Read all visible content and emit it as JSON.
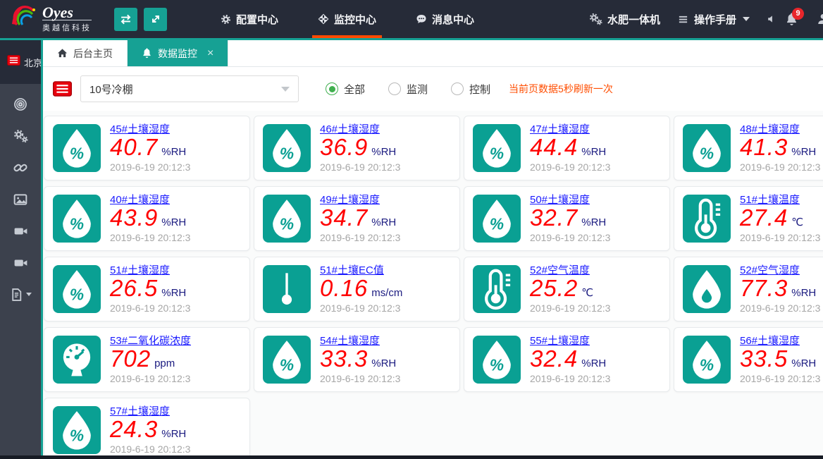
{
  "header": {
    "logo": {
      "brand": "Oyes",
      "subtitle": "奥越信科技"
    },
    "toolbar": [
      {
        "icon": "swap-icon"
      },
      {
        "icon": "expand-icon"
      }
    ],
    "nav": [
      {
        "label": "配置中心",
        "icon": "gear-icon",
        "active": false
      },
      {
        "label": "监控中心",
        "icon": "monitor-icon",
        "active": true
      },
      {
        "label": "消息中心",
        "icon": "message-icon",
        "active": false
      }
    ],
    "right": {
      "fertigation_label": "水肥一体机",
      "manual_label": "操作手册",
      "notification_count": "9"
    }
  },
  "sidebar": {
    "region_label": "北京",
    "items": [
      {
        "icon": "target-icon"
      },
      {
        "icon": "gears-icon"
      },
      {
        "icon": "link-icon"
      },
      {
        "icon": "image-icon"
      },
      {
        "icon": "camera-icon"
      },
      {
        "icon": "camera-icon"
      },
      {
        "icon": "document-icon",
        "caret": true
      }
    ]
  },
  "tabs": [
    {
      "label": "后台主页",
      "icon": "home-icon",
      "active": false,
      "closable": false
    },
    {
      "label": "数据监控",
      "icon": "bell-icon",
      "active": true,
      "closable": true
    }
  ],
  "filter": {
    "greenhouse_selected": "10号冷棚",
    "radios": [
      {
        "label": "全部",
        "checked": true
      },
      {
        "label": "监测",
        "checked": false
      },
      {
        "label": "控制",
        "checked": false
      }
    ],
    "refresh_note": "当前页数据5秒刷新一次"
  },
  "cards": [
    {
      "title": "45#土壤湿度",
      "value": "40.7",
      "unit": "%RH",
      "time": "2019-6-19 20:12:3",
      "icon": "soil-moisture-icon"
    },
    {
      "title": "46#土壤湿度",
      "value": "36.9",
      "unit": "%RH",
      "time": "2019-6-19 20:12:3",
      "icon": "soil-moisture-icon"
    },
    {
      "title": "47#土壤湿度",
      "value": "44.4",
      "unit": "%RH",
      "time": "2019-6-19 20:12:3",
      "icon": "soil-moisture-icon"
    },
    {
      "title": "48#土壤湿度",
      "value": "41.3",
      "unit": "%RH",
      "time": "2019-6-19 20:12:3",
      "icon": "soil-moisture-icon"
    },
    {
      "title": "40#土壤湿度",
      "value": "43.9",
      "unit": "%RH",
      "time": "2019-6-19 20:12:3",
      "icon": "soil-moisture-icon"
    },
    {
      "title": "49#土壤湿度",
      "value": "34.7",
      "unit": "%RH",
      "time": "2019-6-19 20:12:3",
      "icon": "soil-moisture-icon"
    },
    {
      "title": "50#土壤湿度",
      "value": "32.7",
      "unit": "%RH",
      "time": "2019-6-19 20:12:3",
      "icon": "soil-moisture-icon"
    },
    {
      "title": "51#土壤温度",
      "value": "27.4",
      "unit": "℃",
      "time": "2019-6-19 20:12:3",
      "icon": "thermometer-icon"
    },
    {
      "title": "51#土壤湿度",
      "value": "26.5",
      "unit": "%RH",
      "time": "2019-6-19 20:12:3",
      "icon": "soil-moisture-icon"
    },
    {
      "title": "51#土壤EC值",
      "value": "0.16",
      "unit": "ms/cm",
      "time": "2019-6-19 20:12:3",
      "icon": "ec-probe-icon"
    },
    {
      "title": "52#空气温度",
      "value": "25.2",
      "unit": "℃",
      "time": "2019-6-19 20:12:3",
      "icon": "thermometer-icon"
    },
    {
      "title": "52#空气湿度",
      "value": "77.3",
      "unit": "%RH",
      "time": "2019-6-19 20:12:3",
      "icon": "humidity-drop-icon"
    },
    {
      "title": "53#二氧化碳浓度",
      "value": "702",
      "unit": "ppm",
      "time": "2019-6-19 20:12:3",
      "icon": "co2-gauge-icon"
    },
    {
      "title": "54#土壤湿度",
      "value": "33.3",
      "unit": "%RH",
      "time": "2019-6-19 20:12:3",
      "icon": "soil-moisture-icon"
    },
    {
      "title": "55#土壤湿度",
      "value": "32.4",
      "unit": "%RH",
      "time": "2019-6-19 20:12:3",
      "icon": "soil-moisture-icon"
    },
    {
      "title": "56#土壤湿度",
      "value": "33.5",
      "unit": "%RH",
      "time": "2019-6-19 20:12:3",
      "icon": "soil-moisture-icon"
    },
    {
      "title": "57#土壤湿度",
      "value": "24.3",
      "unit": "%RH",
      "time": "2019-6-19 20:12:3",
      "icon": "soil-moisture-icon"
    }
  ],
  "colors": {
    "accent_teal": "#16a194",
    "card_icon_teal": "#0aa093",
    "active_underline": "#ff4a00",
    "title_blue": "#1a1aff",
    "value_red": "#ff0000",
    "unit_navy": "#1b1b80",
    "note_orange": "#ff4d00",
    "badge_red": "#e8262b"
  }
}
